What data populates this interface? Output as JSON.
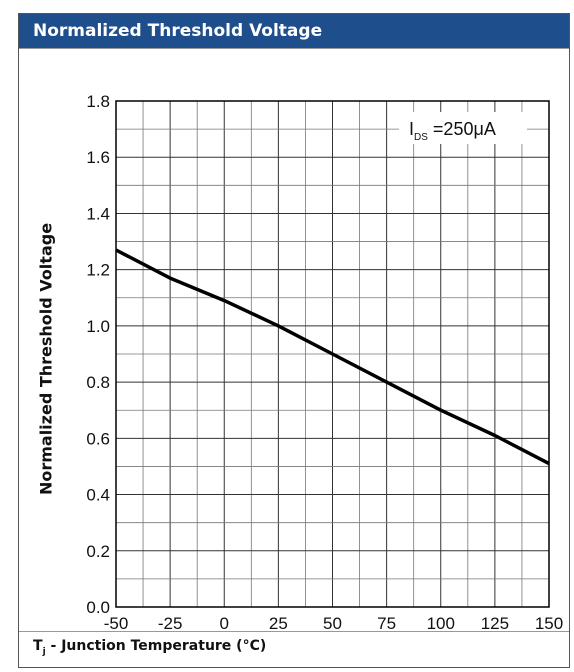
{
  "header": {
    "title": "Normalized Threshold Voltage"
  },
  "footer": {
    "symbol": "T",
    "subscript": "j",
    "rest": " - Junction Temperature (°C)"
  },
  "chart_data": {
    "type": "line",
    "title": "Normalized Threshold Voltage",
    "ylabel": "Normalized Threshold Voltage",
    "xlabel": "Tj - Junction Temperature (°C)",
    "xlim": [
      -50,
      150
    ],
    "ylim": [
      0.0,
      1.8
    ],
    "x_ticks": [
      "-50",
      "-25",
      "0",
      "25",
      "50",
      "75",
      "100",
      "125",
      "150"
    ],
    "y_ticks": [
      "0.0",
      "0.2",
      "0.4",
      "0.6",
      "0.8",
      "1.0",
      "1.2",
      "1.4",
      "1.6",
      "1.8"
    ],
    "grid": true,
    "annotation": {
      "symbol": "I",
      "subscript": "DS",
      "text": " =250μA"
    },
    "series": [
      {
        "x": [
          -50,
          -25,
          0,
          25,
          50,
          75,
          100,
          125,
          150
        ],
        "y": [
          1.27,
          1.17,
          1.09,
          1.0,
          0.9,
          0.8,
          0.7,
          0.61,
          0.51
        ]
      }
    ]
  }
}
